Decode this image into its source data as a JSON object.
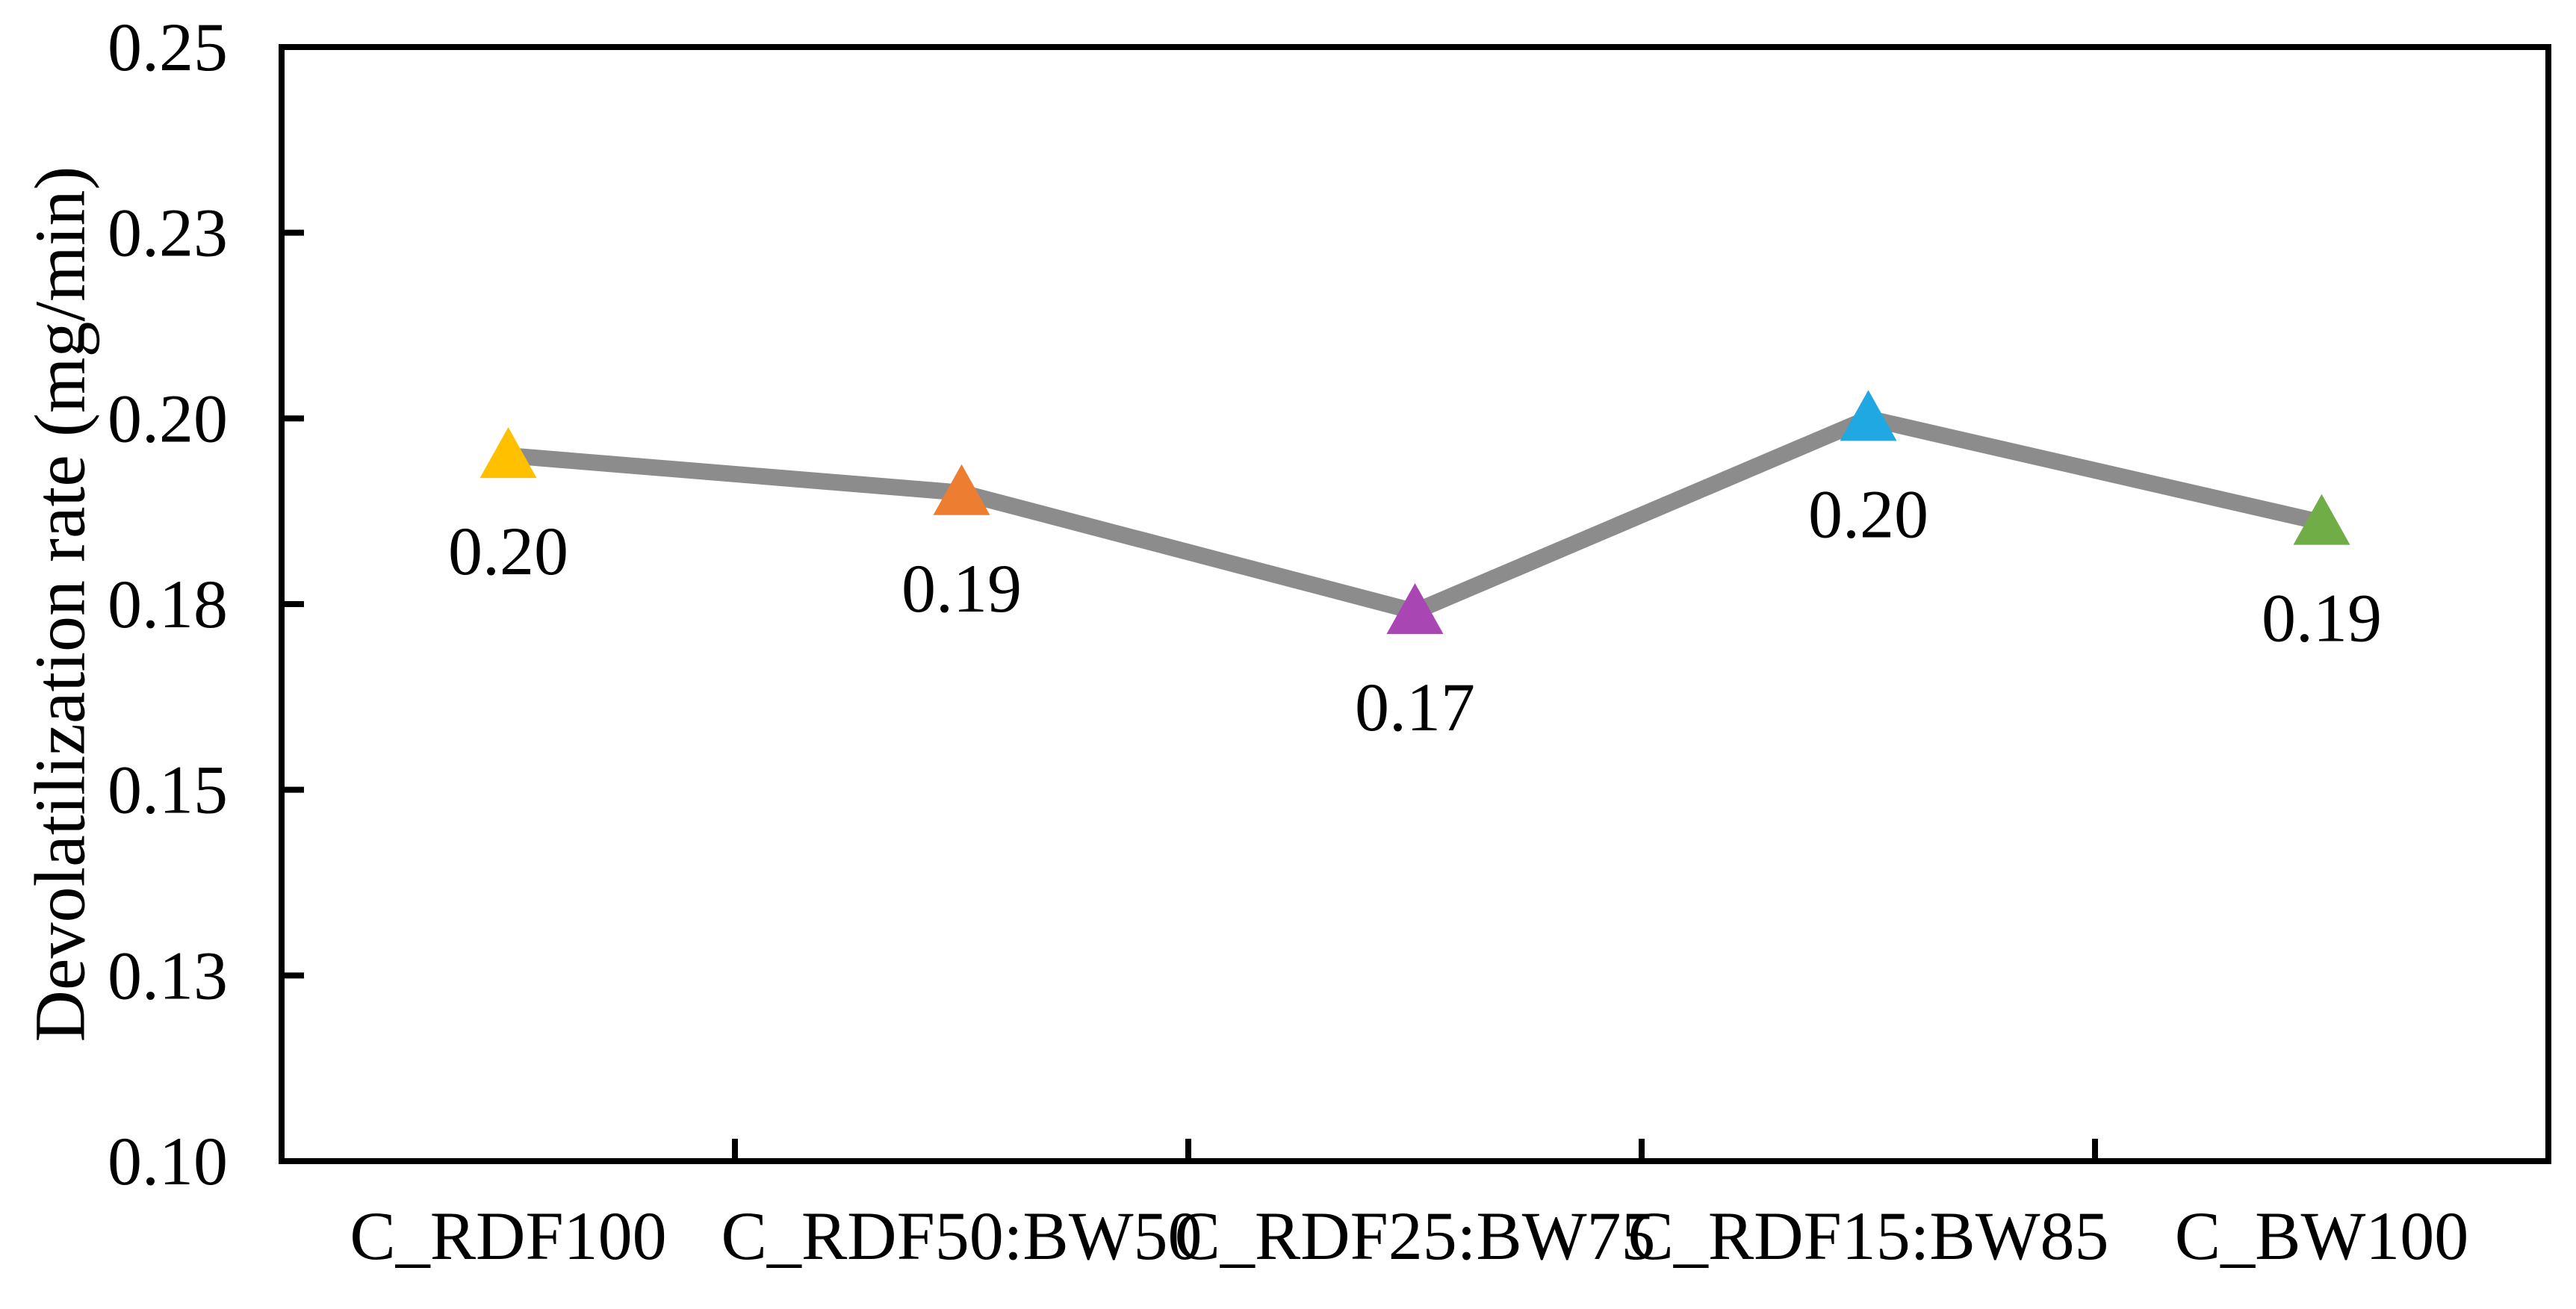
{
  "figure": {
    "background_color": "#FFFFFF",
    "axis_color": "#000000"
  },
  "chart_data": {
    "type": "line",
    "title": "",
    "xlabel": "",
    "ylabel": "Devolatilization rate (mg/min)",
    "categories": [
      "C_RDF100",
      "C_RDF50:BW50",
      "C_RDF25:BW75",
      "C_RDF15:BW85",
      "C_BW100"
    ],
    "series": [
      {
        "name": "Devolatilization rate",
        "values": [
          0.195,
          0.19,
          0.174,
          0.2,
          0.186
        ],
        "data_labels": [
          "0.20",
          "0.19",
          "0.17",
          "0.20",
          "0.19"
        ],
        "line_color": "#8C8C8C",
        "marker_shape": "triangle",
        "marker_colors": [
          "#FFC000",
          "#ED7D31",
          "#A847B4",
          "#1FA8E1",
          "#70AD47"
        ]
      }
    ],
    "ylim": [
      0.1,
      0.25
    ],
    "yticks": {
      "values": [
        0.1,
        0.125,
        0.15,
        0.175,
        0.2,
        0.225,
        0.25
      ],
      "labels": [
        "0.10",
        "0.13",
        "0.15",
        "0.18",
        "0.20",
        "0.23",
        "0.25"
      ]
    },
    "grid": false,
    "legend": false,
    "plot_border": "box",
    "tick_direction": "inside"
  }
}
